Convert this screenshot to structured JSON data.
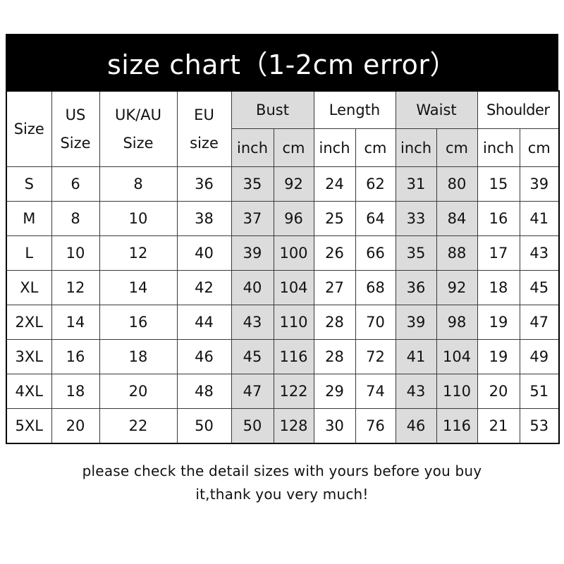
{
  "title": "size chart（1-2cm error）",
  "header": {
    "size": "Size",
    "us": [
      "US",
      "Size"
    ],
    "ukau": [
      "UK/AU",
      "Size"
    ],
    "eu": [
      "EU",
      "size"
    ],
    "groups": [
      "Bust",
      "Length",
      "Waist",
      "Shoulder"
    ],
    "units": [
      "inch",
      "cm"
    ]
  },
  "shaded_color": "#dcdcdc",
  "rows": [
    [
      "S",
      "6",
      "8",
      "36",
      "35",
      "92",
      "24",
      "62",
      "31",
      "80",
      "15",
      "39"
    ],
    [
      "M",
      "8",
      "10",
      "38",
      "37",
      "96",
      "25",
      "64",
      "33",
      "84",
      "16",
      "41"
    ],
    [
      "L",
      "10",
      "12",
      "40",
      "39",
      "100",
      "26",
      "66",
      "35",
      "88",
      "17",
      "43"
    ],
    [
      "XL",
      "12",
      "14",
      "42",
      "40",
      "104",
      "27",
      "68",
      "36",
      "92",
      "18",
      "45"
    ],
    [
      "2XL",
      "14",
      "16",
      "44",
      "43",
      "110",
      "28",
      "70",
      "39",
      "98",
      "19",
      "47"
    ],
    [
      "3XL",
      "16",
      "18",
      "46",
      "45",
      "116",
      "28",
      "72",
      "41",
      "104",
      "19",
      "49"
    ],
    [
      "4XL",
      "18",
      "20",
      "48",
      "47",
      "122",
      "29",
      "74",
      "43",
      "110",
      "20",
      "51"
    ],
    [
      "5XL",
      "20",
      "22",
      "50",
      "50",
      "128",
      "30",
      "76",
      "46",
      "116",
      "21",
      "53"
    ]
  ],
  "footer": [
    "please check the detail sizes with yours before you buy",
    "it,thank you very much!"
  ]
}
